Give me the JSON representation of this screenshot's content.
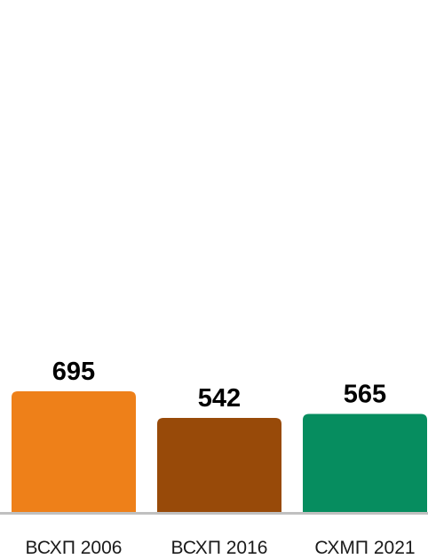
{
  "chart_data": {
    "type": "bar",
    "categories": [
      "ВСХП 2006",
      "ВСХП 2016",
      "СХМП 2021"
    ],
    "values": [
      695,
      542,
      565
    ],
    "title": "",
    "xlabel": "",
    "ylabel": "",
    "ylim": [
      0,
      695
    ],
    "grid": false,
    "legend": "none",
    "colors": [
      "#ee8019",
      "#984a09",
      "#068d5f"
    ],
    "baseline_color": "#c0c0c0"
  }
}
